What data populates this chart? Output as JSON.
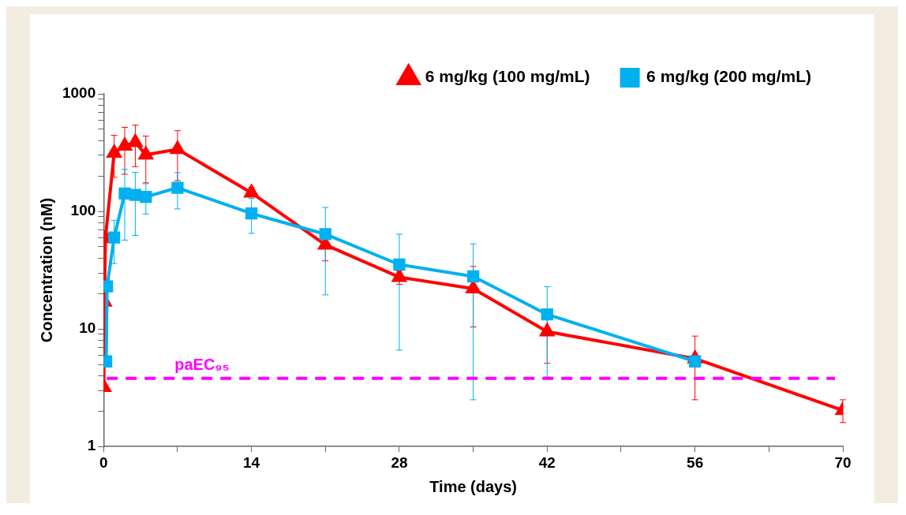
{
  "chart_data": {
    "type": "line",
    "xlabel": "Time (days)",
    "ylabel": "Concentration (nM)",
    "log": "y",
    "xlim": [
      0,
      70
    ],
    "ylim": [
      1,
      1000
    ],
    "xticks": [
      0,
      {
        "value": 7,
        "label": null
      },
      14,
      {
        "value": 21,
        "label": null
      },
      28,
      {
        "value": 35,
        "label": null
      },
      42,
      {
        "value": 49,
        "label": null
      },
      56,
      {
        "value": 63,
        "label": null
      },
      70
    ],
    "yticks": [
      1,
      {
        "value": 2,
        "label": null
      },
      {
        "value": 3,
        "label": null
      },
      {
        "value": 4,
        "label": null
      },
      {
        "value": 5,
        "label": null
      },
      {
        "value": 6,
        "label": null
      },
      {
        "value": 7,
        "label": null
      },
      {
        "value": 8,
        "label": null
      },
      {
        "value": 9,
        "label": null
      },
      10,
      {
        "value": 20,
        "label": null
      },
      {
        "value": 30,
        "label": null
      },
      {
        "value": 40,
        "label": null
      },
      {
        "value": 50,
        "label": null
      },
      {
        "value": 60,
        "label": null
      },
      {
        "value": 70,
        "label": null
      },
      {
        "value": 80,
        "label": null
      },
      {
        "value": 90,
        "label": null
      },
      100,
      {
        "value": 200,
        "label": null
      },
      {
        "value": 300,
        "label": null
      },
      {
        "value": 400,
        "label": null
      },
      {
        "value": 500,
        "label": null
      },
      {
        "value": 600,
        "label": null
      },
      {
        "value": 700,
        "label": null
      },
      {
        "value": 800,
        "label": null
      },
      {
        "value": 900,
        "label": null
      },
      1000
    ],
    "grid": false,
    "legend": "top right",
    "line_style": "solid",
    "series": [
      {
        "name": "6 mg/kg (100 mg/mL)",
        "color": "#ff0000",
        "marker": "triangle",
        "x": [
          0.02,
          0.08,
          0.17,
          1,
          2,
          3,
          4,
          7,
          14,
          21,
          28,
          35,
          42,
          56,
          70
        ],
        "values": [
          3.2,
          17,
          59,
          314,
          361,
          387,
          303,
          338,
          144,
          52,
          27.6,
          22,
          9.5,
          5.6,
          2.03
        ],
        "errors": [
          null,
          null,
          null,
          [
            195,
            444
          ],
          [
            207,
            519
          ],
          [
            240,
            542
          ],
          [
            175,
            437
          ],
          [
            183,
            486
          ],
          [
            138,
            160
          ],
          14,
          3.6,
          [
            10.4,
            34
          ],
          4.4,
          [
            2.5,
            8.7
          ],
          [
            1.6,
            2.5
          ]
        ]
      },
      {
        "name": "6 mg/kg (200 mg/mL)",
        "color": "#00b0f0",
        "marker": "square",
        "x": [
          0.25,
          0.33,
          1,
          2,
          3,
          4,
          7,
          14,
          21,
          28,
          35,
          42,
          56
        ],
        "values": [
          5.3,
          23,
          60,
          142,
          138,
          133,
          159,
          96,
          64,
          35.3,
          28,
          13.3,
          5.3
        ],
        "errors": [
          null,
          null,
          [
            36,
            84
          ],
          [
            57,
            228
          ],
          [
            62.5,
            215
          ],
          [
            95,
            172
          ],
          [
            105,
            214
          ],
          [
            65,
            129
          ],
          [
            19.5,
            108
          ],
          [
            6.6,
            64
          ],
          [
            2.5,
            53
          ],
          [
            3.9,
            22.9
          ],
          null
        ]
      }
    ],
    "ref_lines": [
      {
        "axis": "y",
        "value": 3.8,
        "label": "paEC₉₅",
        "color": "#ff00ff",
        "line_style": "dashed"
      }
    ]
  }
}
